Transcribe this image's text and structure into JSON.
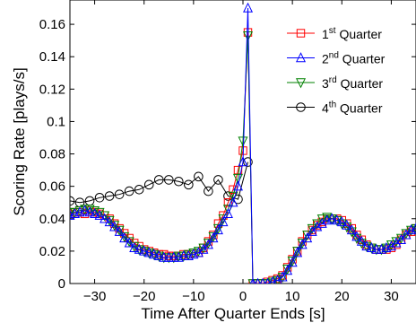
{
  "chart_data": {
    "type": "line",
    "xlabel": "Time After Quarter Ends [s]",
    "ylabel": "Scoring Rate [plays/s]",
    "xlim": [
      -35,
      35
    ],
    "ylim": [
      0,
      0.175
    ],
    "xticks": [
      -30,
      -20,
      -10,
      0,
      10,
      20,
      30
    ],
    "xtick_labels": [
      "−30",
      "−20",
      "−10",
      "0",
      "10",
      "20",
      "30"
    ],
    "yticks": [
      0,
      0.02,
      0.04,
      0.06,
      0.08,
      0.1,
      0.12,
      0.14,
      0.16
    ],
    "ytick_labels": [
      "0",
      "0.02",
      "0.04",
      "0.06",
      "0.08",
      "0.1",
      "0.12",
      "0.14",
      "0.16"
    ],
    "grid": false,
    "legend_position": "top-right",
    "series": [
      {
        "name_base": "1",
        "name_sup": "st",
        "name_rest": " Quarter",
        "color": "#ff0000",
        "marker": "square",
        "x": [
          -35,
          -34,
          -33,
          -32,
          -31,
          -30,
          -29,
          -28,
          -27,
          -26,
          -25,
          -24,
          -23,
          -22,
          -21,
          -20,
          -19,
          -18,
          -17,
          -16,
          -15,
          -14,
          -13,
          -12,
          -11,
          -10,
          -9,
          -8,
          -7,
          -6,
          -5,
          -4,
          -3,
          -2,
          -1,
          0,
          1,
          2,
          3,
          4,
          5,
          6,
          7,
          8,
          9,
          10,
          11,
          12,
          13,
          14,
          15,
          16,
          17,
          18,
          19,
          20,
          21,
          22,
          23,
          24,
          25,
          26,
          27,
          28,
          29,
          30,
          31,
          32,
          33,
          34,
          35
        ],
        "y": [
          0.043,
          0.044,
          0.044,
          0.043,
          0.045,
          0.044,
          0.043,
          0.042,
          0.04,
          0.037,
          0.034,
          0.031,
          0.028,
          0.025,
          0.023,
          0.021,
          0.02,
          0.019,
          0.018,
          0.018,
          0.017,
          0.017,
          0.017,
          0.018,
          0.018,
          0.019,
          0.019,
          0.022,
          0.026,
          0.03,
          0.037,
          0.042,
          0.05,
          0.058,
          0.07,
          0.082,
          0.155,
          0.0,
          0.0,
          0.0,
          0.001,
          0.002,
          0.003,
          0.005,
          0.01,
          0.015,
          0.02,
          0.026,
          0.03,
          0.033,
          0.036,
          0.038,
          0.04,
          0.04,
          0.04,
          0.039,
          0.037,
          0.034,
          0.03,
          0.027,
          0.024,
          0.022,
          0.021,
          0.021,
          0.021,
          0.022,
          0.024,
          0.027,
          0.03,
          0.032,
          0.034
        ]
      },
      {
        "name_base": "2",
        "name_sup": "nd",
        "name_rest": " Quarter",
        "color": "#0000ff",
        "marker": "triangle-up",
        "x": [
          -35,
          -34,
          -33,
          -32,
          -31,
          -30,
          -29,
          -28,
          -27,
          -26,
          -25,
          -24,
          -23,
          -22,
          -21,
          -20,
          -19,
          -18,
          -17,
          -16,
          -15,
          -14,
          -13,
          -12,
          -11,
          -10,
          -9,
          -8,
          -7,
          -6,
          -5,
          -4,
          -3,
          -2,
          -1,
          0,
          1,
          2,
          3,
          4,
          5,
          6,
          7,
          8,
          9,
          10,
          11,
          12,
          13,
          14,
          15,
          16,
          17,
          18,
          19,
          20,
          21,
          22,
          23,
          24,
          25,
          26,
          27,
          28,
          29,
          30,
          31,
          32,
          33,
          34,
          35
        ],
        "y": [
          0.042,
          0.043,
          0.044,
          0.045,
          0.044,
          0.043,
          0.042,
          0.04,
          0.038,
          0.035,
          0.032,
          0.028,
          0.025,
          0.022,
          0.021,
          0.02,
          0.019,
          0.018,
          0.017,
          0.016,
          0.016,
          0.016,
          0.016,
          0.017,
          0.017,
          0.018,
          0.019,
          0.021,
          0.024,
          0.028,
          0.033,
          0.038,
          0.043,
          0.05,
          0.06,
          0.075,
          0.17,
          0.0,
          0.0,
          0.0,
          0.0,
          0.001,
          0.002,
          0.004,
          0.008,
          0.013,
          0.019,
          0.024,
          0.028,
          0.032,
          0.035,
          0.037,
          0.039,
          0.04,
          0.039,
          0.038,
          0.036,
          0.033,
          0.029,
          0.026,
          0.023,
          0.022,
          0.021,
          0.021,
          0.022,
          0.023,
          0.025,
          0.027,
          0.03,
          0.033,
          0.034
        ]
      },
      {
        "name_base": "3",
        "name_sup": "rd",
        "name_rest": " Quarter",
        "color": "#008000",
        "marker": "triangle-down",
        "x": [
          -35,
          -34,
          -33,
          -32,
          -31,
          -30,
          -29,
          -28,
          -27,
          -26,
          -25,
          -24,
          -23,
          -22,
          -21,
          -20,
          -19,
          -18,
          -17,
          -16,
          -15,
          -14,
          -13,
          -12,
          -11,
          -10,
          -9,
          -8,
          -7,
          -6,
          -5,
          -4,
          -3,
          -2,
          -1,
          0,
          1,
          2,
          3,
          4,
          5,
          6,
          7,
          8,
          9,
          10,
          11,
          12,
          13,
          14,
          15,
          16,
          17,
          18,
          19,
          20,
          21,
          22,
          23,
          24,
          25,
          26,
          27,
          28,
          29,
          30,
          31,
          32,
          33,
          34,
          35
        ],
        "y": [
          0.044,
          0.044,
          0.045,
          0.046,
          0.046,
          0.045,
          0.044,
          0.042,
          0.039,
          0.036,
          0.033,
          0.029,
          0.026,
          0.023,
          0.021,
          0.02,
          0.019,
          0.018,
          0.017,
          0.016,
          0.016,
          0.016,
          0.017,
          0.017,
          0.018,
          0.019,
          0.02,
          0.022,
          0.025,
          0.029,
          0.034,
          0.04,
          0.046,
          0.054,
          0.065,
          0.088,
          0.153,
          0.0,
          0.0,
          0.0,
          0.0,
          0.001,
          0.002,
          0.004,
          0.009,
          0.014,
          0.02,
          0.025,
          0.03,
          0.034,
          0.037,
          0.04,
          0.041,
          0.04,
          0.039,
          0.037,
          0.035,
          0.032,
          0.028,
          0.025,
          0.023,
          0.022,
          0.021,
          0.021,
          0.022,
          0.024,
          0.026,
          0.028,
          0.031,
          0.033,
          0.034
        ]
      },
      {
        "name_base": "4",
        "name_sup": "th",
        "name_rest": " Quarter",
        "color": "#000000",
        "marker": "circle",
        "x": [
          -35,
          -33,
          -31,
          -29,
          -27,
          -25,
          -23,
          -21,
          -19,
          -17,
          -15,
          -13,
          -11,
          -9,
          -7,
          -5,
          -3,
          -1,
          1
        ],
        "y": [
          0.051,
          0.05,
          0.051,
          0.053,
          0.054,
          0.055,
          0.057,
          0.058,
          0.061,
          0.064,
          0.064,
          0.063,
          0.061,
          0.066,
          0.057,
          0.064,
          0.054,
          0.052,
          0.075
        ]
      }
    ]
  }
}
